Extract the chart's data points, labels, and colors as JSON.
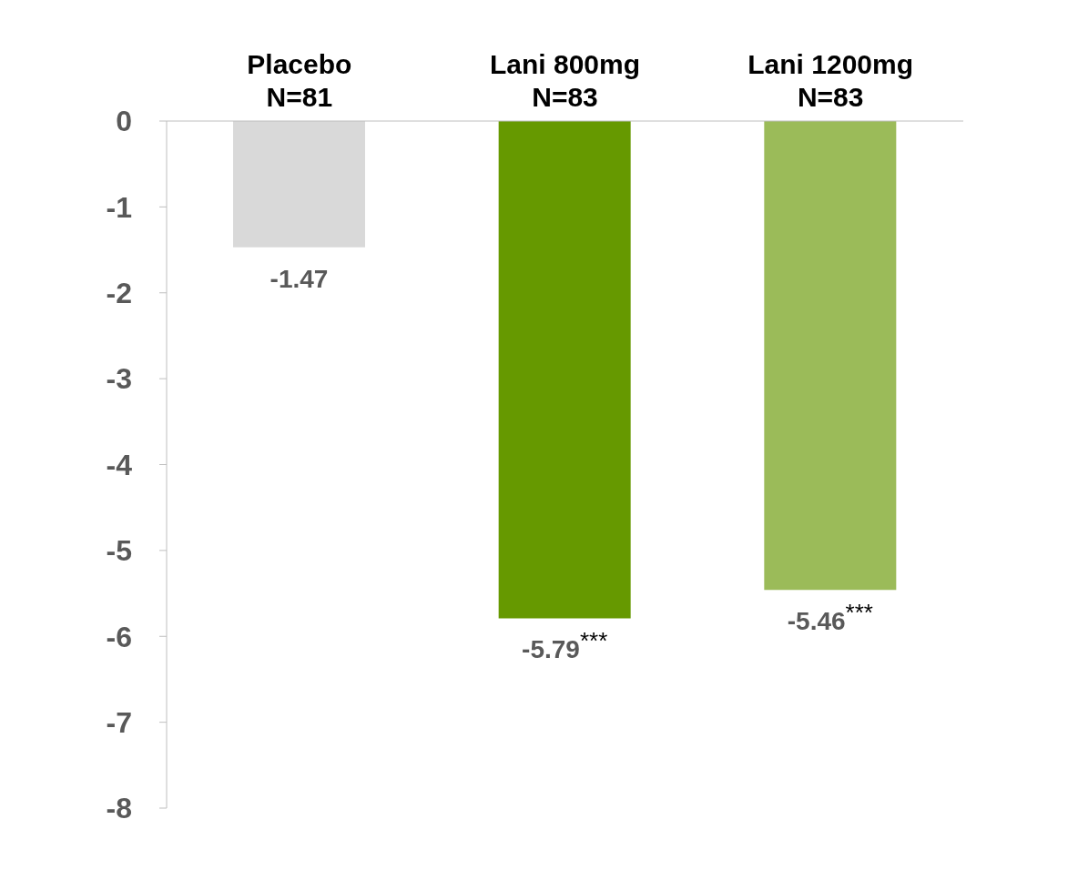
{
  "chart_data": {
    "type": "bar",
    "categories": [
      "Placebo\nN=81",
      "Lani 800mg\nN=83",
      "Lani 1200mg\nN=83"
    ],
    "values": [
      -1.47,
      -5.79,
      -5.46
    ],
    "colors": [
      "#d9d9d9",
      "#669900",
      "#9bbb59"
    ],
    "value_labels": [
      "-1.47",
      "-5.79$^{***}$",
      "-5.46$^{***}$"
    ],
    "ylim": [
      -8,
      0
    ],
    "yticks": [
      0,
      -1,
      -2,
      -3,
      -4,
      -5,
      -6,
      -7,
      -8
    ]
  }
}
